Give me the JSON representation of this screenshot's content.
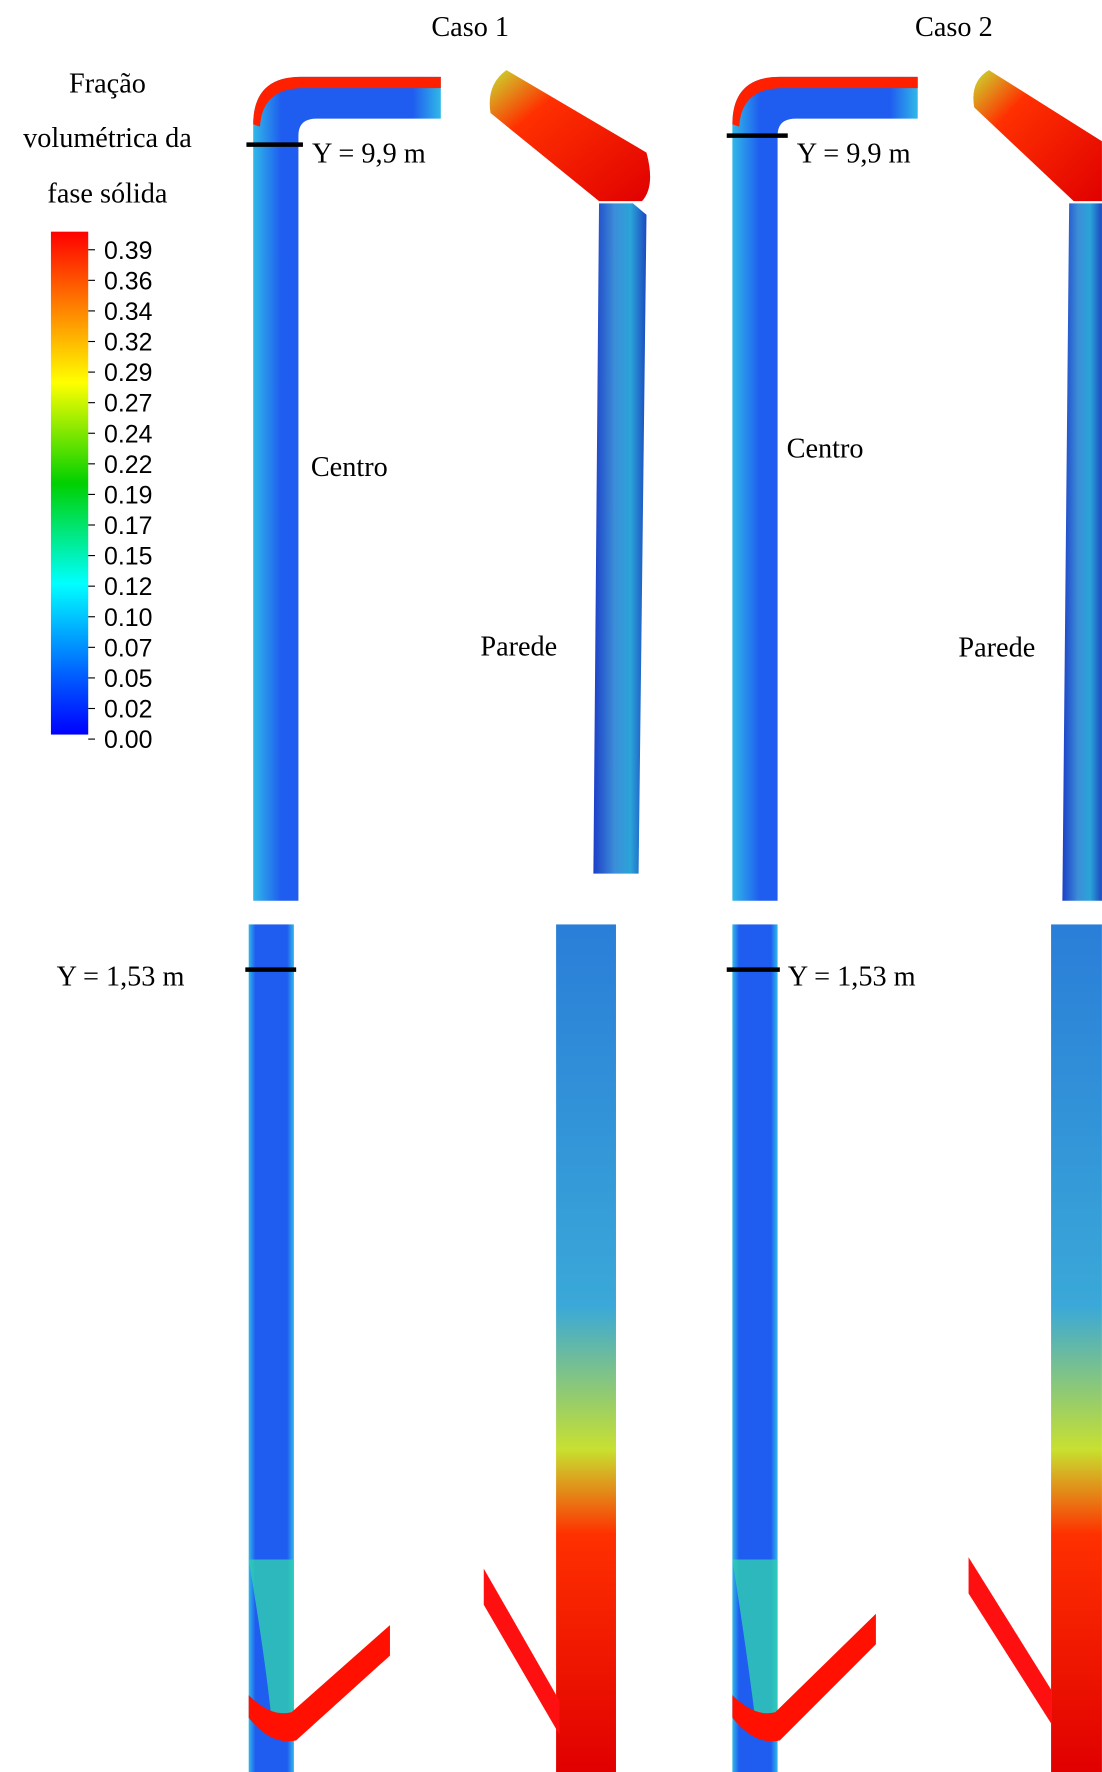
{
  "figure": {
    "cases": [
      "Caso 1",
      "Caso 2"
    ],
    "legend": {
      "title": [
        "Fração",
        "volumétrica da",
        "fase sólida"
      ],
      "ticks": [
        "0.39",
        "0.36",
        "0.34",
        "0.32",
        "0.29",
        "0.27",
        "0.24",
        "0.22",
        "0.19",
        "0.17",
        "0.15",
        "0.12",
        "0.10",
        "0.07",
        "0.05",
        "0.02",
        "0.00"
      ]
    },
    "labels": {
      "top_line": "Y = 9,9 m",
      "bottom_line": "Y = 1,53 m",
      "center": "Centro",
      "wall": "Parede"
    }
  }
}
